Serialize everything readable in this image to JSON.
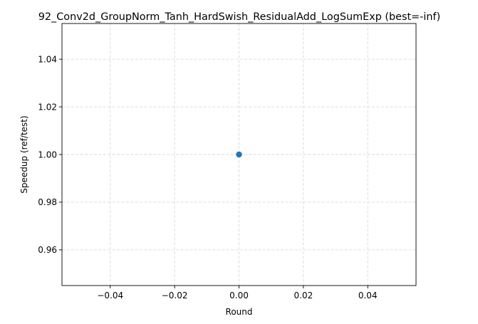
{
  "chart_data": {
    "type": "line",
    "title": "92_Conv2d_GroupNorm_Tanh_HardSwish_ResidualAdd_LogSumExp (best=-inf)",
    "xlabel": "Round",
    "ylabel": "Speedup (ref/test)",
    "xlim": [
      -0.055,
      0.055
    ],
    "ylim": [
      0.945,
      1.055
    ],
    "xticks": [
      -0.04,
      -0.02,
      0.0,
      0.02,
      0.04
    ],
    "xtick_labels": [
      "−0.04",
      "−0.02",
      "0.00",
      "0.02",
      "0.04"
    ],
    "yticks": [
      0.96,
      0.98,
      1.0,
      1.02,
      1.04
    ],
    "ytick_labels": [
      "0.96",
      "0.98",
      "1.00",
      "1.02",
      "1.04"
    ],
    "grid": true,
    "series": [
      {
        "x": [
          0
        ],
        "y": [
          1.0
        ],
        "color": "#1f77b4",
        "marker": "circle"
      }
    ]
  }
}
